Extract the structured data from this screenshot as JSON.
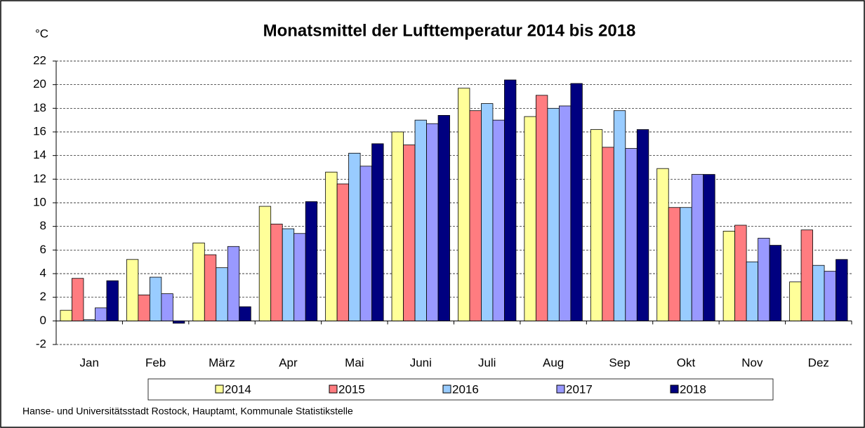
{
  "chart_data": {
    "type": "bar",
    "title": "Monatsmittel der Lufttemperatur 2014 bis 2018",
    "y_label": "°C",
    "source": "Hanse- und Universitätsstadt Rostock, Hauptamt, Kommunale Statistikstelle",
    "categories": [
      "Jan",
      "Feb",
      "März",
      "Apr",
      "Mai",
      "Juni",
      "Juli",
      "Aug",
      "Sep",
      "Okt",
      "Nov",
      "Dez"
    ],
    "series": [
      {
        "name": "2014",
        "color": "#ffff99",
        "values": [
          0.9,
          5.2,
          6.6,
          9.7,
          12.6,
          16.0,
          19.7,
          17.3,
          16.2,
          12.9,
          7.6,
          3.3
        ]
      },
      {
        "name": "2015",
        "color": "#ff7c80",
        "values": [
          3.6,
          2.2,
          5.6,
          8.2,
          11.6,
          14.9,
          17.8,
          19.1,
          14.7,
          9.6,
          8.1,
          7.7
        ]
      },
      {
        "name": "2016",
        "color": "#99ccff",
        "values": [
          0.1,
          3.7,
          4.5,
          7.8,
          14.2,
          17.0,
          18.4,
          18.0,
          17.8,
          9.6,
          5.0,
          4.7
        ]
      },
      {
        "name": "2017",
        "color": "#9999ff",
        "values": [
          1.1,
          2.3,
          6.3,
          7.4,
          13.1,
          16.7,
          17.0,
          18.2,
          14.6,
          12.4,
          7.0,
          4.2
        ]
      },
      {
        "name": "2018",
        "color": "#000080",
        "values": [
          3.4,
          -0.2,
          1.2,
          10.1,
          15.0,
          17.4,
          20.4,
          20.1,
          16.2,
          12.4,
          6.4,
          5.2
        ]
      }
    ],
    "ylim": [
      -2,
      22
    ],
    "yticks": [
      -2,
      0,
      2,
      4,
      6,
      8,
      10,
      12,
      14,
      16,
      18,
      20,
      22
    ],
    "grid": true,
    "legend": "bottom"
  }
}
